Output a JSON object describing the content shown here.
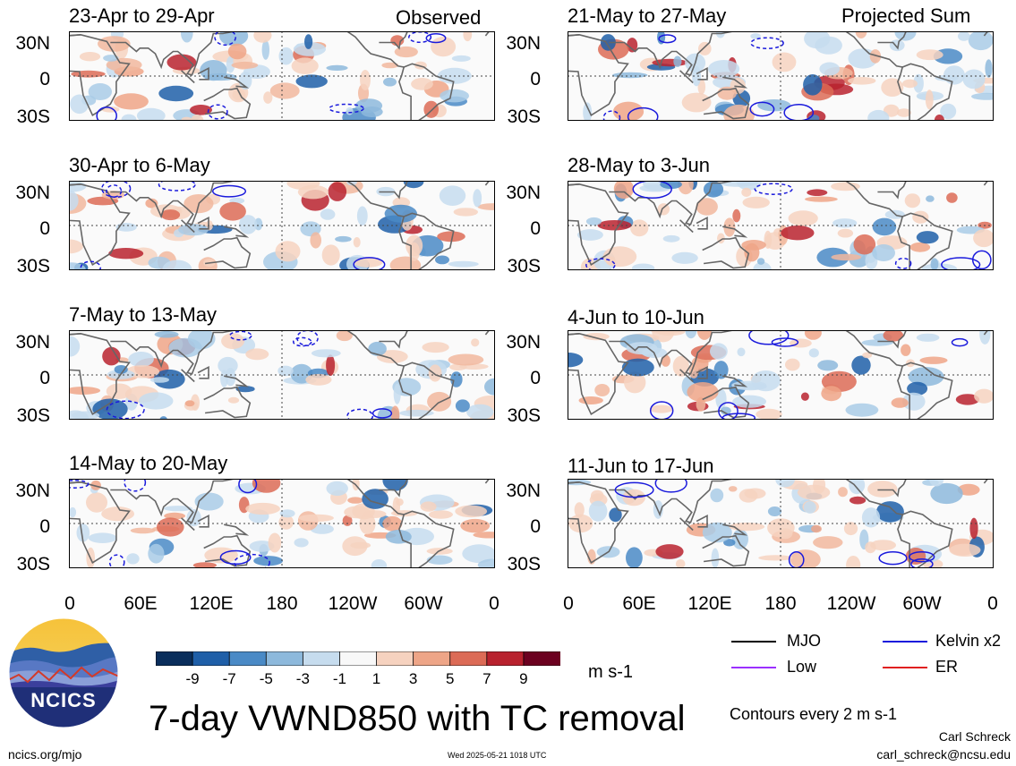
{
  "panels_left_header": "Observed",
  "panels_right_header": "Projected Sum",
  "panels": [
    {
      "col": 0,
      "row": 0,
      "title": "23-Apr to 29-Apr"
    },
    {
      "col": 0,
      "row": 1,
      "title": "30-Apr to 6-May"
    },
    {
      "col": 0,
      "row": 2,
      "title": "7-May to 13-May"
    },
    {
      "col": 0,
      "row": 3,
      "title": "14-May to 20-May"
    },
    {
      "col": 1,
      "row": 0,
      "title": "21-May to 27-May"
    },
    {
      "col": 1,
      "row": 1,
      "title": "28-May to 3-Jun"
    },
    {
      "col": 1,
      "row": 2,
      "title": "4-Jun to 10-Jun"
    },
    {
      "col": 1,
      "row": 3,
      "title": "11-Jun to 17-Jun"
    }
  ],
  "y_ticks": [
    "30N",
    "0",
    "30S"
  ],
  "x_ticks": [
    "0",
    "60E",
    "120E",
    "180",
    "120W",
    "60W",
    "0"
  ],
  "colorbar": {
    "labels": [
      "-9",
      "-7",
      "-5",
      "-3",
      "-1",
      "1",
      "3",
      "5",
      "7",
      "9"
    ],
    "colors": [
      "#0a2e5c",
      "#1f5fa8",
      "#4a8ac6",
      "#8db9dc",
      "#c6dcee",
      "#f8f8f8",
      "#f6d2bf",
      "#eea587",
      "#dc6b56",
      "#b8222e",
      "#6c0120"
    ],
    "units": "m s-1"
  },
  "legend": {
    "mjo": "MJO",
    "kelvin": "Kelvin x2",
    "low": "Low",
    "er": "ER",
    "contours_note": "Contours every 2 m s-1",
    "line_colors": {
      "mjo": "#000000",
      "kelvin": "#1a1adc",
      "low": "#9b30ff",
      "er": "#e02020"
    }
  },
  "main_title": "7-day VWND850 with TC removal",
  "logo_text": "NCICS",
  "footer": {
    "left": "ncics.org/mjo",
    "center": "Wed 2025-05-21 1018 UTC",
    "author": "Carl Schreck",
    "email": "carl_schreck@ncsu.edu"
  }
}
